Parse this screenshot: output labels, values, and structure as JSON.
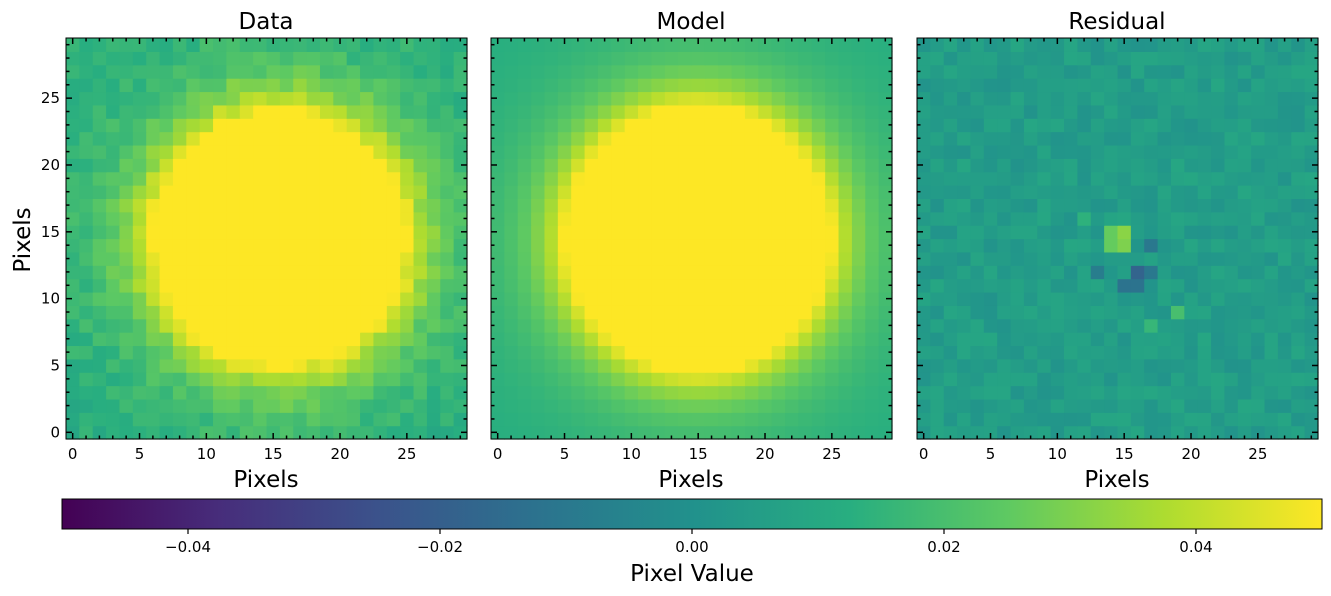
{
  "chart_data": [
    {
      "type": "heatmap",
      "title": "Data",
      "xlabel": "Pixels",
      "ylabel": "Pixels",
      "grid_size": 30,
      "xlim": [
        -0.5,
        29.5
      ],
      "ylim": [
        -0.5,
        29.5
      ],
      "x_ticks": [
        0,
        5,
        10,
        15,
        20,
        25
      ],
      "y_ticks": [
        0,
        5,
        10,
        15,
        20,
        25
      ],
      "center": [
        15.5,
        14.5
      ],
      "saturated_radius": 9.5,
      "background_value": 0.012,
      "noise_amplitude": 0.004
    },
    {
      "type": "heatmap",
      "title": "Model",
      "xlabel": "Pixels",
      "ylabel": "",
      "grid_size": 30,
      "xlim": [
        -0.5,
        29.5
      ],
      "ylim": [
        -0.5,
        29.5
      ],
      "x_ticks": [
        0,
        5,
        10,
        15,
        20,
        25
      ],
      "y_ticks": [],
      "center": [
        15.0,
        14.5
      ],
      "saturated_radius": 10,
      "background_value": 0.012,
      "noise_amplitude": 0.0
    },
    {
      "type": "heatmap",
      "title": "Residual",
      "xlabel": "Pixels",
      "ylabel": "",
      "grid_size": 30,
      "xlim": [
        -0.5,
        29.5
      ],
      "ylim": [
        -0.5,
        29.5
      ],
      "x_ticks": [
        0,
        5,
        10,
        15,
        20,
        25
      ],
      "y_ticks": [],
      "base_value": 0.005,
      "noise_amplitude": 0.004,
      "highlights": [
        {
          "x": 15,
          "y": 15,
          "value": 0.032
        },
        {
          "x": 15,
          "y": 14,
          "value": 0.03
        },
        {
          "x": 14,
          "y": 15,
          "value": 0.026
        },
        {
          "x": 14,
          "y": 14,
          "value": 0.026
        },
        {
          "x": 16,
          "y": 12,
          "value": -0.018
        },
        {
          "x": 15,
          "y": 11,
          "value": -0.012
        },
        {
          "x": 16,
          "y": 11,
          "value": -0.012
        },
        {
          "x": 17,
          "y": 12,
          "value": -0.01
        },
        {
          "x": 17,
          "y": 14,
          "value": -0.01
        },
        {
          "x": 13,
          "y": 12,
          "value": -0.008
        },
        {
          "x": 19,
          "y": 9,
          "value": 0.02
        },
        {
          "x": 17,
          "y": 8,
          "value": 0.016
        },
        {
          "x": 12,
          "y": 16,
          "value": 0.014
        }
      ]
    }
  ],
  "colorbar": {
    "label": "Pixel Value",
    "colormap": "viridis",
    "vmin": -0.05,
    "vmax": 0.05,
    "ticks": [
      -0.04,
      -0.02,
      0.0,
      0.02,
      0.04
    ],
    "tick_labels": [
      "−0.04",
      "−0.02",
      "0.00",
      "0.02",
      "0.04"
    ]
  }
}
